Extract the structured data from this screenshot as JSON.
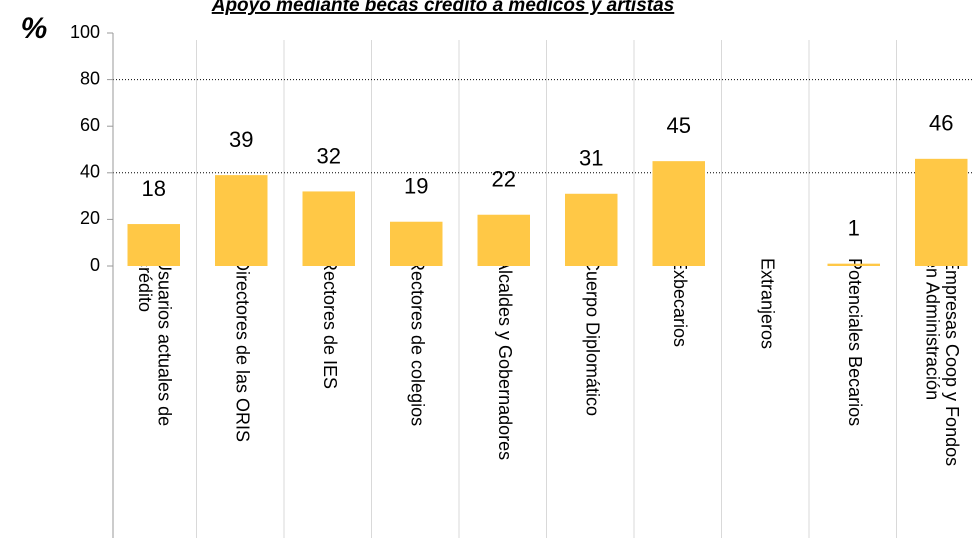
{
  "chart_data": {
    "type": "bar",
    "title": "Apoyo mediante becas crédito a médicos y artistas",
    "y_unit": "%",
    "categories": [
      "Usuarios actuales de\ncrédito",
      "Directores de las ORIS",
      "Rectores de IES",
      "Rectores de colegios",
      "Alcaldes y Gobernadores",
      "Cuerpo Diplomático",
      "Exbecarios",
      "Extranjeros",
      "Potenciales Becarios",
      "Empresas Coop y Fondos\nen Administración"
    ],
    "values": [
      18,
      39,
      32,
      19,
      22,
      31,
      45,
      null,
      1,
      46
    ],
    "color": "#ffc846",
    "ylim": [
      0,
      100
    ],
    "yticks": [
      0,
      20,
      40,
      60,
      80,
      100
    ],
    "grid_lines": [
      40,
      80
    ]
  }
}
